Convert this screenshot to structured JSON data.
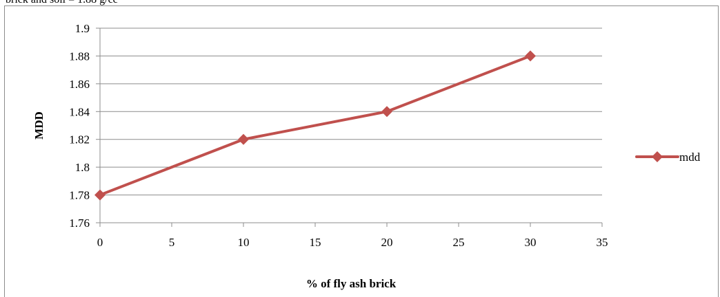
{
  "header_fragment": "brick and soil = 1.88 g/cc",
  "chart_data": {
    "type": "line",
    "title": "",
    "xlabel": "% of fly ash brick",
    "ylabel": "MDD",
    "xlim": [
      0,
      35
    ],
    "ylim": [
      1.76,
      1.9
    ],
    "x_ticks": [
      "0",
      "5",
      "10",
      "15",
      "20",
      "25",
      "30",
      "35"
    ],
    "y_ticks": [
      "1.76",
      "1.78",
      "1.8",
      "1.82",
      "1.84",
      "1.86",
      "1.88",
      "1.9"
    ],
    "grid": "horizontal",
    "legend_position": "right",
    "series": [
      {
        "name": "mdd",
        "color": "#c0504d",
        "marker": "diamond",
        "x": [
          0,
          10,
          20,
          30
        ],
        "y": [
          1.78,
          1.82,
          1.84,
          1.88
        ]
      }
    ]
  }
}
